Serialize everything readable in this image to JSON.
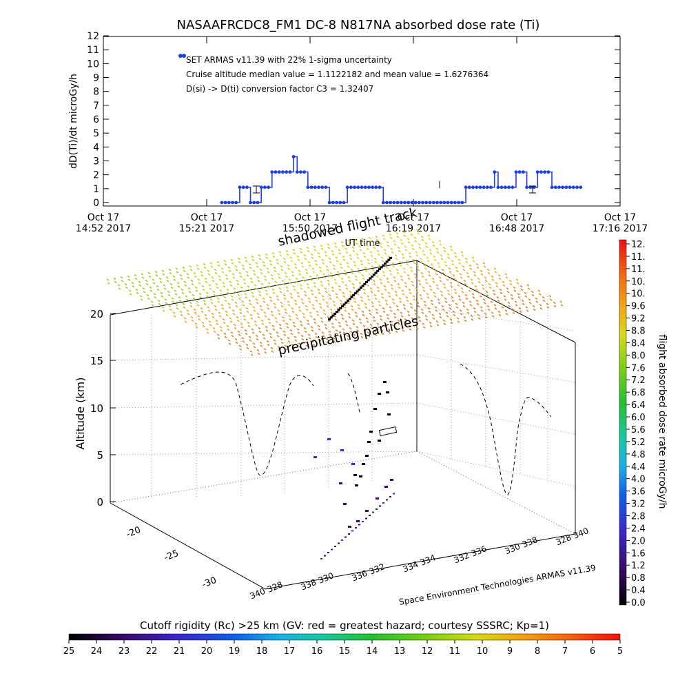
{
  "title": "NASAAFRCDC8_FM1 DC-8    N817NA absorbed dose rate (Ti)",
  "colors": {
    "series": "#1f3fe0",
    "axis": "#000000",
    "grid": "#999999",
    "shadow_dots": "#c98a2a"
  },
  "chart_data": [
    {
      "id": "time-series",
      "type": "line",
      "ylabel": "dD(Ti)/dt microGy/h",
      "xlabel": "UT time",
      "ylim": [
        0,
        12
      ],
      "yticks": [
        "0",
        "1",
        "2",
        "3",
        "4",
        "5",
        "6",
        "7",
        "8",
        "9",
        "10",
        "11",
        "12"
      ],
      "x_tick_labels": [
        [
          "Oct 17",
          "14:52 2017"
        ],
        [
          "Oct 17",
          "15:21 2017"
        ],
        [
          "Oct 17",
          "15:50 2017"
        ],
        [
          "Oct 17",
          "16:19 2017"
        ],
        [
          "Oct 17",
          "16:48 2017"
        ],
        [
          "Oct 17",
          "17:16 2017"
        ]
      ],
      "xlim_minutes": [
        0,
        144
      ],
      "annotations": [
        "SET ARMAS v11.39 with 22% 1-sigma uncertainty",
        "Cruise altitude median value = 1.1122182 and mean value = 1.6276364",
        "D(si) -> D(ti) conversion factor C3 = 1.32407"
      ],
      "series": [
        {
          "x": [
            33,
            34,
            35,
            36,
            37,
            38,
            39,
            40,
            41,
            42,
            43,
            44,
            45,
            46,
            47,
            48,
            49,
            50,
            51,
            52,
            53,
            54,
            55,
            56,
            57,
            58,
            59,
            60,
            61,
            62,
            63,
            64,
            65,
            66,
            67,
            68,
            69,
            70,
            71,
            72,
            73,
            74,
            75,
            76,
            77,
            78,
            79,
            80,
            81,
            82,
            83,
            84,
            85,
            86,
            87,
            88,
            89,
            90,
            91,
            92,
            93,
            94,
            95,
            96,
            97,
            98,
            99,
            100,
            101,
            102,
            103,
            104,
            105,
            106,
            107,
            108,
            109,
            110,
            111,
            112,
            113,
            114,
            115,
            116,
            117,
            118,
            119,
            120,
            121,
            122,
            123,
            124,
            125,
            126,
            127,
            128,
            129,
            130,
            131,
            132,
            133
          ],
          "y": [
            0,
            0,
            0,
            0,
            0,
            1.1,
            1.1,
            1.1,
            0,
            0,
            0,
            1.1,
            1.1,
            1.1,
            2.2,
            2.2,
            2.2,
            2.2,
            2.2,
            2.2,
            3.3,
            2.2,
            2.2,
            2.2,
            1.1,
            1.1,
            1.1,
            1.1,
            1.1,
            1.1,
            0,
            0,
            0,
            0,
            0,
            1.1,
            1.1,
            1.1,
            1.1,
            1.1,
            1.1,
            1.1,
            1.1,
            1.1,
            1.1,
            0,
            0,
            0,
            0,
            0,
            0,
            0,
            0,
            0,
            0,
            0,
            0,
            0,
            0,
            0,
            0,
            0,
            0,
            0,
            0,
            0,
            0,
            0,
            1.1,
            1.1,
            1.1,
            1.1,
            1.1,
            1.1,
            1.1,
            1.1,
            2.2,
            1.1,
            1.1,
            1.1,
            1.1,
            1.1,
            2.2,
            2.2,
            2.2,
            1.1,
            1.1,
            1.1,
            2.2,
            2.2,
            2.2,
            2.2,
            1.1,
            1.1,
            1.1,
            1.1,
            1.1,
            1.1,
            1.1,
            1.1,
            1.1
          ]
        }
      ]
    },
    {
      "id": "3d-altitude",
      "type": "scatter",
      "zlabel": "Altitude (km)",
      "zlim": [
        0,
        20
      ],
      "z_tick_labels": [
        "0",
        "5",
        "10",
        "15",
        "20"
      ],
      "y_tick_labels": [
        "-20",
        "-25",
        "-30"
      ],
      "x_tick_labels": [
        "328",
        "330",
        "332",
        "334",
        "336",
        "338",
        "340"
      ],
      "x_tick_labels_front": [
        "328",
        "330",
        "332",
        "334",
        "336",
        "338",
        "340"
      ],
      "annotations": [
        "shadowed flight track",
        "precipitating particles"
      ],
      "credit": "Space Environment Technologies ARMAS v11.39",
      "colorbar": {
        "label": "flight absorbed dose rate microGy/h",
        "tick_labels": [
          "12.",
          "11.",
          "11.",
          "10.",
          "10.",
          "9.6",
          "9.2",
          "8.8",
          "8.4",
          "8.0",
          "7.6",
          "7.2",
          "6.8",
          "6.4",
          "6.0",
          "5.6",
          "5.2",
          "4.8",
          "4.4",
          "4.0",
          "3.6",
          "3.2",
          "2.8",
          "2.4",
          "2.0",
          "1.6",
          "1.2",
          "0.8",
          "0.4",
          "0.0"
        ]
      }
    },
    {
      "id": "rigidity-bar",
      "type": "heatmap",
      "title": "Cutoff rigidity (Rc) >25 km (GV: red = greatest hazard; courtesy SSSRC; Kp=1)",
      "tick_labels": [
        "25",
        "24",
        "23",
        "22",
        "21",
        "20",
        "19",
        "18",
        "17",
        "16",
        "15",
        "14",
        "13",
        "12",
        "11",
        "10",
        "9",
        "8",
        "7",
        "6",
        "5"
      ]
    }
  ]
}
